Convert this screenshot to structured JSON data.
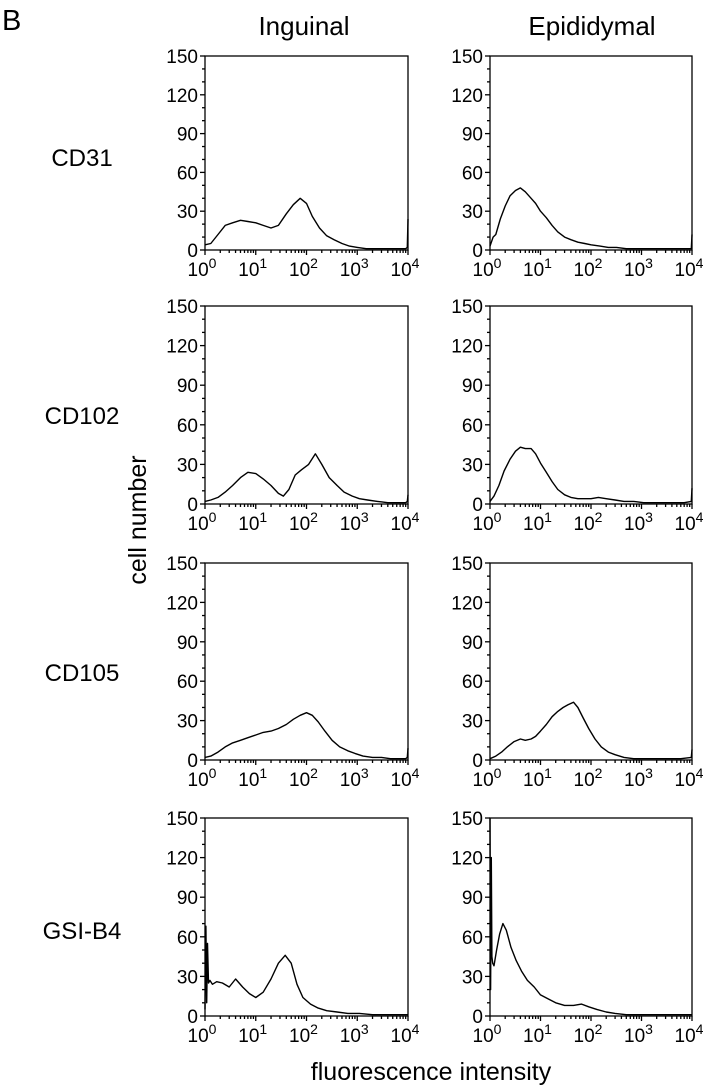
{
  "figure": {
    "panel_letter": "B",
    "column_titles": [
      "Inguinal",
      "Epididymal"
    ],
    "row_labels": [
      "CD31",
      "CD102",
      "CD105",
      "GSI-B4"
    ],
    "y_title": "cell number",
    "x_title": "fluorescence intensity"
  },
  "chart_data": [
    {
      "type": "line",
      "title": "Inguinal",
      "row": "CD31",
      "xscale": "log",
      "xlim": [
        1,
        10000
      ],
      "ylim": [
        0,
        150
      ],
      "y_ticks": [
        0,
        30,
        60,
        90,
        120,
        150
      ],
      "x_ticks": [
        1,
        10,
        100,
        1000,
        10000
      ],
      "x_tick_labels": [
        {
          "base": "10",
          "exp": "0"
        },
        {
          "base": "10",
          "exp": "1"
        },
        {
          "base": "10",
          "exp": "2"
        },
        {
          "base": "10",
          "exp": "3"
        },
        {
          "base": "10",
          "exp": "4"
        }
      ],
      "x": [
        1,
        1.3,
        1.8,
        2.5,
        3.5,
        5,
        7,
        10,
        14,
        20,
        28,
        40,
        55,
        75,
        100,
        130,
        180,
        250,
        350,
        500,
        700,
        1000,
        1500,
        2200,
        3000,
        4500,
        6500,
        9000,
        9700,
        10000
      ],
      "y": [
        4,
        5,
        12,
        19,
        21,
        23,
        22,
        21,
        19,
        17,
        19,
        28,
        35,
        40,
        36,
        26,
        17,
        11,
        8,
        5,
        3,
        2,
        1,
        1,
        1,
        1,
        1,
        1,
        2,
        24
      ]
    },
    {
      "type": "line",
      "title": "Epididymal",
      "row": "CD31",
      "xscale": "log",
      "xlim": [
        1,
        10000
      ],
      "ylim": [
        0,
        150
      ],
      "y_ticks": [
        0,
        30,
        60,
        90,
        120,
        150
      ],
      "x_ticks": [
        1,
        10,
        100,
        1000,
        10000
      ],
      "x_tick_labels": [
        {
          "base": "10",
          "exp": "0"
        },
        {
          "base": "10",
          "exp": "1"
        },
        {
          "base": "10",
          "exp": "2"
        },
        {
          "base": "10",
          "exp": "3"
        },
        {
          "base": "10",
          "exp": "4"
        }
      ],
      "x": [
        1,
        1.15,
        1.3,
        1.6,
        2,
        2.5,
        3.2,
        4,
        5,
        6.5,
        8,
        10,
        13,
        17,
        22,
        30,
        40,
        55,
        75,
        100,
        150,
        220,
        320,
        500,
        800,
        1500,
        3000,
        6000,
        9700,
        10000
      ],
      "y": [
        3,
        10,
        12,
        24,
        34,
        42,
        46,
        48,
        45,
        40,
        36,
        30,
        25,
        19,
        14,
        10,
        8,
        6,
        5,
        4,
        3,
        2,
        2,
        1,
        1,
        1,
        1,
        1,
        1,
        12
      ]
    },
    {
      "type": "line",
      "title": "Inguinal",
      "row": "CD102",
      "xscale": "log",
      "xlim": [
        1,
        10000
      ],
      "ylim": [
        0,
        150
      ],
      "y_ticks": [
        0,
        30,
        60,
        90,
        120,
        150
      ],
      "x_ticks": [
        1,
        10,
        100,
        1000,
        10000
      ],
      "x_tick_labels": [
        {
          "base": "10",
          "exp": "0"
        },
        {
          "base": "10",
          "exp": "1"
        },
        {
          "base": "10",
          "exp": "2"
        },
        {
          "base": "10",
          "exp": "3"
        },
        {
          "base": "10",
          "exp": "4"
        }
      ],
      "x": [
        1,
        1.3,
        1.8,
        2.5,
        3.5,
        5,
        7,
        10,
        14,
        20,
        28,
        35,
        45,
        60,
        80,
        110,
        150,
        200,
        280,
        400,
        550,
        800,
        1100,
        1600,
        2500,
        4000,
        6500,
        9000,
        9700,
        10000
      ],
      "y": [
        2,
        3,
        5,
        9,
        14,
        20,
        24,
        23,
        19,
        14,
        8,
        6,
        11,
        22,
        26,
        30,
        38,
        30,
        20,
        14,
        9,
        6,
        4,
        3,
        2,
        1,
        1,
        1,
        2,
        7
      ]
    },
    {
      "type": "line",
      "title": "Epididymal",
      "row": "CD102",
      "xscale": "log",
      "xlim": [
        1,
        10000
      ],
      "ylim": [
        0,
        150
      ],
      "y_ticks": [
        0,
        30,
        60,
        90,
        120,
        150
      ],
      "x_ticks": [
        1,
        10,
        100,
        1000,
        10000
      ],
      "x_tick_labels": [
        {
          "base": "10",
          "exp": "0"
        },
        {
          "base": "10",
          "exp": "1"
        },
        {
          "base": "10",
          "exp": "2"
        },
        {
          "base": "10",
          "exp": "3"
        },
        {
          "base": "10",
          "exp": "4"
        }
      ],
      "x": [
        1,
        1.2,
        1.5,
        1.9,
        2.5,
        3.2,
        4,
        5,
        6.5,
        8,
        10,
        13,
        17,
        22,
        30,
        40,
        55,
        75,
        100,
        140,
        200,
        300,
        450,
        700,
        1100,
        2000,
        4000,
        7000,
        9700,
        10000
      ],
      "y": [
        2,
        6,
        14,
        25,
        34,
        40,
        43,
        42,
        42,
        38,
        31,
        24,
        17,
        11,
        7,
        5,
        4,
        4,
        4,
        5,
        4,
        3,
        2,
        2,
        1,
        1,
        1,
        1,
        2,
        12
      ]
    },
    {
      "type": "line",
      "title": "Inguinal",
      "row": "CD105",
      "xscale": "log",
      "xlim": [
        1,
        10000
      ],
      "ylim": [
        0,
        150
      ],
      "y_ticks": [
        0,
        30,
        60,
        90,
        120,
        150
      ],
      "x_ticks": [
        1,
        10,
        100,
        1000,
        10000
      ],
      "x_tick_labels": [
        {
          "base": "10",
          "exp": "0"
        },
        {
          "base": "10",
          "exp": "1"
        },
        {
          "base": "10",
          "exp": "2"
        },
        {
          "base": "10",
          "exp": "3"
        },
        {
          "base": "10",
          "exp": "4"
        }
      ],
      "x": [
        1,
        1.3,
        1.8,
        2.5,
        3.5,
        5,
        7,
        10,
        14,
        20,
        28,
        40,
        55,
        75,
        100,
        130,
        170,
        230,
        320,
        450,
        650,
        900,
        1300,
        2000,
        3000,
        4500,
        6500,
        9000,
        9700,
        10000
      ],
      "y": [
        2,
        3,
        6,
        10,
        13,
        15,
        17,
        19,
        21,
        22,
        24,
        27,
        31,
        34,
        36,
        34,
        29,
        22,
        15,
        10,
        7,
        5,
        3,
        2,
        2,
        1,
        1,
        1,
        2,
        9
      ]
    },
    {
      "type": "line",
      "title": "Epididymal",
      "row": "CD105",
      "xscale": "log",
      "xlim": [
        1,
        10000
      ],
      "ylim": [
        0,
        150
      ],
      "y_ticks": [
        0,
        30,
        60,
        90,
        120,
        150
      ],
      "x_ticks": [
        1,
        10,
        100,
        1000,
        10000
      ],
      "x_tick_labels": [
        {
          "base": "10",
          "exp": "0"
        },
        {
          "base": "10",
          "exp": "1"
        },
        {
          "base": "10",
          "exp": "2"
        },
        {
          "base": "10",
          "exp": "3"
        },
        {
          "base": "10",
          "exp": "4"
        }
      ],
      "x": [
        1,
        1.3,
        1.7,
        2.2,
        3,
        4,
        5,
        6.5,
        8,
        10,
        13,
        17,
        22,
        28,
        35,
        45,
        55,
        70,
        90,
        120,
        160,
        220,
        300,
        450,
        700,
        1200,
        2500,
        6000,
        9700,
        10000
      ],
      "y": [
        1,
        3,
        6,
        10,
        14,
        16,
        15,
        16,
        18,
        22,
        27,
        33,
        37,
        40,
        42,
        44,
        40,
        32,
        24,
        16,
        10,
        6,
        4,
        2,
        1,
        1,
        1,
        1,
        2,
        8
      ]
    },
    {
      "type": "line",
      "title": "Inguinal",
      "row": "GSI-B4",
      "xscale": "log",
      "xlim": [
        1,
        10000
      ],
      "ylim": [
        0,
        150
      ],
      "y_ticks": [
        0,
        30,
        60,
        90,
        120,
        150
      ],
      "x_ticks": [
        1,
        10,
        100,
        1000,
        10000
      ],
      "x_tick_labels": [
        {
          "base": "10",
          "exp": "0"
        },
        {
          "base": "10",
          "exp": "1"
        },
        {
          "base": "10",
          "exp": "2"
        },
        {
          "base": "10",
          "exp": "3"
        },
        {
          "base": "10",
          "exp": "4"
        }
      ],
      "x": [
        1,
        1.04,
        1.08,
        1.12,
        1.17,
        1.25,
        1.4,
        1.7,
        2.2,
        3,
        4,
        5.5,
        7.5,
        10,
        14,
        20,
        28,
        38,
        50,
        65,
        85,
        120,
        170,
        250,
        400,
        650,
        1100,
        2000,
        5000,
        10000
      ],
      "y": [
        5,
        68,
        10,
        55,
        25,
        27,
        24,
        26,
        25,
        22,
        28,
        22,
        17,
        14,
        18,
        28,
        40,
        46,
        40,
        24,
        14,
        9,
        6,
        4,
        3,
        2,
        2,
        1,
        1,
        1
      ]
    },
    {
      "type": "line",
      "title": "Epididymal",
      "row": "GSI-B4",
      "xscale": "log",
      "xlim": [
        1,
        10000
      ],
      "ylim": [
        0,
        150
      ],
      "y_ticks": [
        0,
        30,
        60,
        90,
        120,
        150
      ],
      "x_ticks": [
        1,
        10,
        100,
        1000,
        10000
      ],
      "x_tick_labels": [
        {
          "base": "10",
          "exp": "0"
        },
        {
          "base": "10",
          "exp": "1"
        },
        {
          "base": "10",
          "exp": "2"
        },
        {
          "base": "10",
          "exp": "3"
        },
        {
          "base": "10",
          "exp": "4"
        }
      ],
      "x": [
        1,
        1.03,
        1.06,
        1.09,
        1.13,
        1.2,
        1.35,
        1.55,
        1.8,
        2.1,
        2.6,
        3.3,
        4.2,
        5.5,
        7.5,
        10,
        14,
        20,
        30,
        45,
        65,
        90,
        130,
        200,
        300,
        500,
        900,
        2000,
        5000,
        10000
      ],
      "y": [
        150,
        20,
        120,
        45,
        40,
        38,
        50,
        62,
        70,
        65,
        52,
        42,
        34,
        27,
        22,
        16,
        13,
        10,
        8,
        8,
        9,
        7,
        5,
        3,
        2,
        1,
        1,
        1,
        1,
        1
      ]
    }
  ]
}
